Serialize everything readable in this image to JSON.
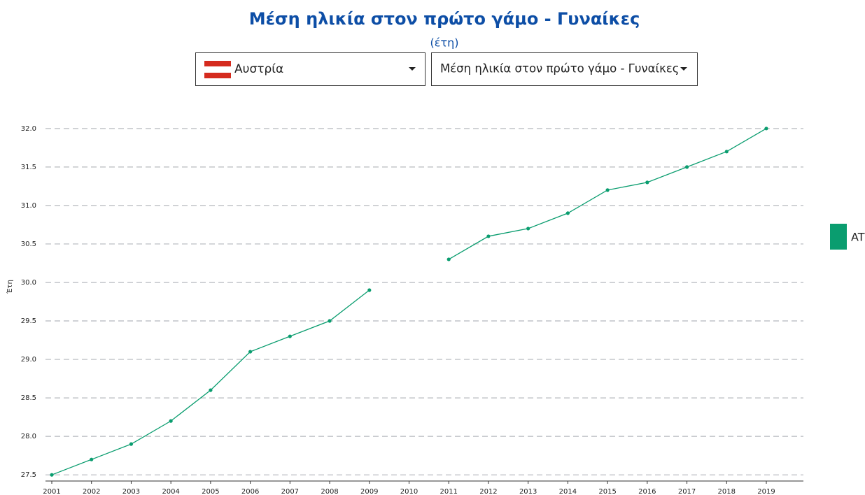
{
  "controls": {
    "country": "Αυστρία",
    "indicator": "Μέση ηλικία στον πρώτο γάμο - Γυναίκες"
  },
  "chart_data": {
    "type": "line",
    "title": "Μέση ηλικία στον πρώτο γάμο - Γυναίκες",
    "subtitle": "(έτη)",
    "y_label": "Έτη",
    "categories": [
      "2001",
      "2002",
      "2003",
      "2004",
      "2005",
      "2006",
      "2007",
      "2008",
      "2009",
      "2010",
      "2011",
      "2012",
      "2013",
      "2014",
      "2015",
      "2016",
      "2017",
      "2018",
      "2019"
    ],
    "series": [
      {
        "name": "AT",
        "color": "#0a9d6f",
        "values": [
          27.5,
          27.7,
          27.9,
          28.2,
          28.6,
          29.1,
          29.3,
          29.5,
          29.9,
          null,
          30.3,
          30.6,
          30.7,
          30.9,
          31.2,
          31.3,
          31.5,
          31.7,
          32.0
        ]
      }
    ],
    "ylim": [
      27.42,
      32.08
    ],
    "yticks": [
      27.5,
      {
        "value": 28,
        "label": "28.0"
      },
      28.5,
      {
        "value": 29,
        "label": "29.0"
      },
      29.5,
      {
        "value": 30,
        "label": "30.0"
      },
      30.5,
      {
        "value": 31,
        "label": "31.0"
      },
      31.5,
      {
        "value": 32,
        "label": "32.0"
      }
    ],
    "grid": true,
    "legend": "right"
  }
}
